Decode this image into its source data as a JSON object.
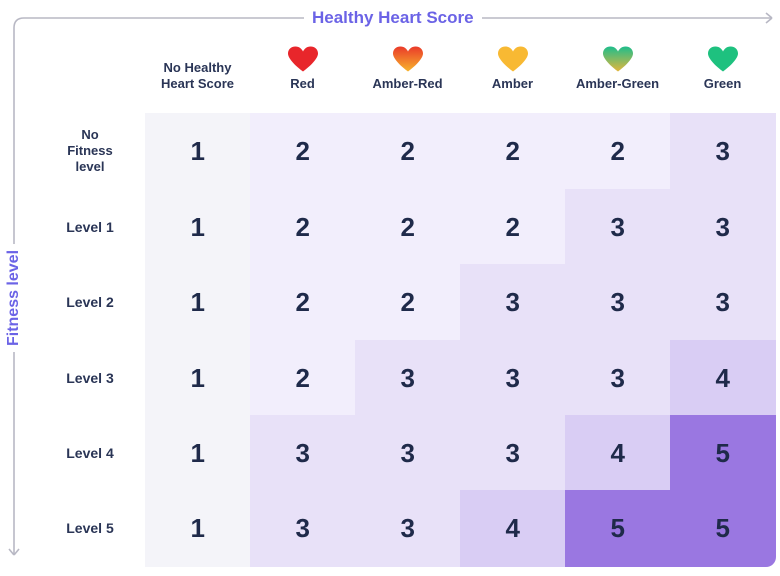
{
  "x_axis_title": "Healthy Heart Score",
  "y_axis_title": "Fitness level",
  "colors": {
    "axis": "#6b63e6",
    "arrow": "#b8b8c4",
    "text": "#1f2a4a",
    "heart_red": "#e8262b",
    "heart_amber_red": [
      "#f7b42c",
      "#ea3a2a"
    ],
    "heart_amber": "#f8b933",
    "heart_amber_green": [
      "#1fbd8b",
      "#e2b63c"
    ],
    "heart_green": "#1ec17f",
    "score_shades": {
      "1": "#f4f4f9",
      "2": "#f2eefc",
      "3": "#e8e1f8",
      "4": "#d9cdf4",
      "5": "#9a77e1"
    }
  },
  "chart_data": {
    "type": "heatmap",
    "x_title": "Healthy Heart Score",
    "y_title": "Fitness level",
    "columns": [
      {
        "label": "No Healthy Heart Score",
        "lines": [
          "No Healthy",
          "Heart Score"
        ],
        "icon": null
      },
      {
        "label": "Red",
        "lines": [
          "Red"
        ],
        "icon": "red-heart-icon"
      },
      {
        "label": "Amber-Red",
        "lines": [
          "Amber-Red"
        ],
        "icon": "amber-red-heart-icon"
      },
      {
        "label": "Amber",
        "lines": [
          "Amber"
        ],
        "icon": "amber-heart-icon"
      },
      {
        "label": "Amber-Green",
        "lines": [
          "Amber-Green"
        ],
        "icon": "amber-green-heart-icon"
      },
      {
        "label": "Green",
        "lines": [
          "Green"
        ],
        "icon": "green-heart-icon"
      }
    ],
    "rows": [
      {
        "label": "No Fitness level",
        "lines": [
          "No",
          "Fitness",
          "level"
        ]
      },
      {
        "label": "Level 1",
        "lines": [
          "Level 1"
        ]
      },
      {
        "label": "Level 2",
        "lines": [
          "Level 2"
        ]
      },
      {
        "label": "Level 3",
        "lines": [
          "Level 3"
        ]
      },
      {
        "label": "Level 4",
        "lines": [
          "Level 4"
        ]
      },
      {
        "label": "Level 5",
        "lines": [
          "Level 5"
        ]
      }
    ],
    "values": [
      [
        1,
        2,
        2,
        2,
        2,
        3
      ],
      [
        1,
        2,
        2,
        2,
        3,
        3
      ],
      [
        1,
        2,
        2,
        3,
        3,
        3
      ],
      [
        1,
        2,
        3,
        3,
        3,
        4
      ],
      [
        1,
        3,
        3,
        3,
        4,
        5
      ],
      [
        1,
        3,
        3,
        4,
        5,
        5
      ]
    ]
  }
}
